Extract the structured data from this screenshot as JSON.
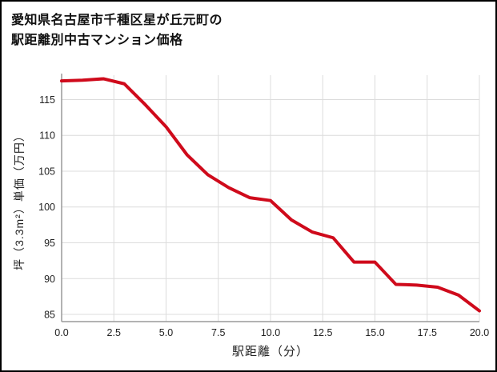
{
  "title": {
    "line1": "愛知県名古屋市千種区星が丘元町の",
    "line2": "駅距離別中古マンション価格"
  },
  "chart_data": {
    "type": "line",
    "title": "愛知県名古屋市千種区星が丘元町の駅距離別中古マンション価格",
    "xlabel": "駅距離（分）",
    "ylabel": "坪（3.3m²）単価（万円）",
    "x": [
      0,
      1,
      2,
      3,
      4,
      5,
      6,
      7,
      8,
      9,
      10,
      11,
      12,
      13,
      14,
      15,
      16,
      17,
      18,
      19,
      20
    ],
    "values": [
      117.6,
      117.7,
      117.9,
      117.2,
      114.3,
      111.2,
      107.3,
      104.5,
      102.7,
      101.3,
      100.9,
      98.2,
      96.5,
      95.7,
      92.3,
      92.3,
      89.2,
      89.1,
      88.8,
      87.7,
      85.5
    ],
    "xlim": [
      0,
      20
    ],
    "ylim": [
      84,
      118.4
    ],
    "x_ticks": [
      0,
      2.5,
      5,
      7.5,
      10,
      12.5,
      15,
      17.5,
      20
    ],
    "x_tick_labels": [
      "0.0",
      "2.5",
      "5.0",
      "7.5",
      "10.0",
      "12.5",
      "15.0",
      "17.5",
      "20.0"
    ],
    "y_ticks": [
      85,
      90,
      95,
      100,
      105,
      110,
      115
    ],
    "y_tick_labels": [
      "85",
      "90",
      "95",
      "100",
      "105",
      "110",
      "115"
    ],
    "grid": true,
    "legend_position": "none",
    "line_color": "#cf0a1b",
    "grid_color": "#dcdcdc",
    "axis_color": "#9a9a9a",
    "tick_text_color": "#222222"
  }
}
